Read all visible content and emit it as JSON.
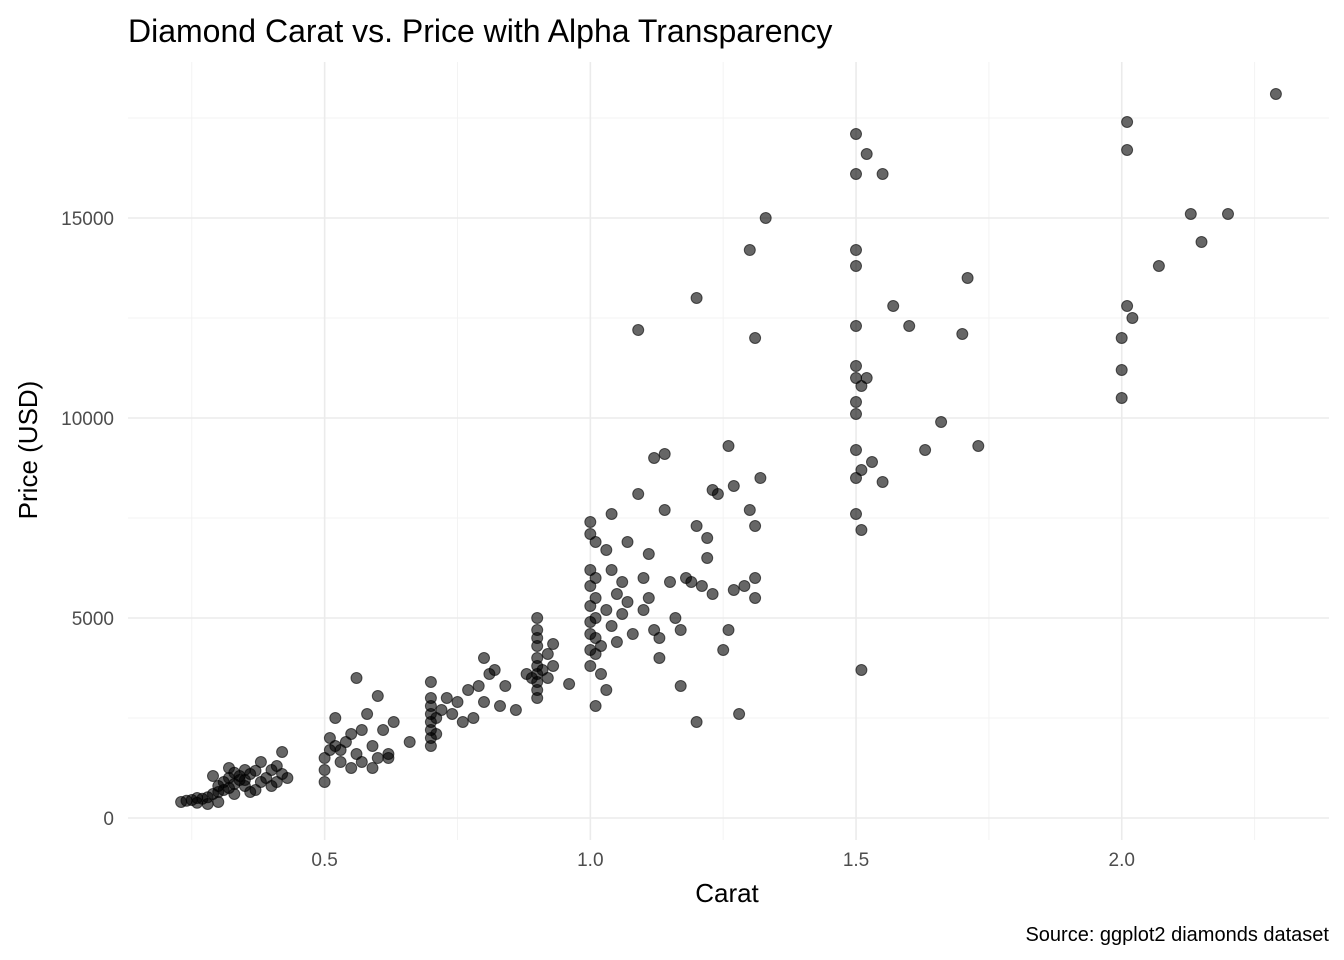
{
  "chart_data": {
    "type": "scatter",
    "title": "Diamond Carat vs. Price with Alpha Transparency",
    "xlabel": "Carat",
    "ylabel": "Price (USD)",
    "caption": "Source: ggplot2 diamonds dataset",
    "xlim": [
      0.13,
      2.39
    ],
    "ylim": [
      -550,
      18900
    ],
    "x_ticks": [
      0.5,
      1.0,
      1.5,
      2.0
    ],
    "x_tick_labels": [
      "0.5",
      "1.0",
      "1.5",
      "2.0"
    ],
    "y_ticks": [
      0,
      5000,
      10000,
      15000
    ],
    "y_tick_labels": [
      "0",
      "5000",
      "10000",
      "15000"
    ],
    "grid": true,
    "point_color": "#000000",
    "point_alpha": 0.6,
    "points": [
      [
        0.23,
        400
      ],
      [
        0.24,
        430
      ],
      [
        0.25,
        450
      ],
      [
        0.26,
        500
      ],
      [
        0.27,
        480
      ],
      [
        0.28,
        520
      ],
      [
        0.29,
        600
      ],
      [
        0.3,
        650
      ],
      [
        0.3,
        800
      ],
      [
        0.31,
        700
      ],
      [
        0.31,
        900
      ],
      [
        0.32,
        750
      ],
      [
        0.32,
        1000
      ],
      [
        0.33,
        850
      ],
      [
        0.33,
        600
      ],
      [
        0.34,
        950
      ],
      [
        0.35,
        1200
      ],
      [
        0.35,
        800
      ],
      [
        0.36,
        1100
      ],
      [
        0.37,
        700
      ],
      [
        0.38,
        900
      ],
      [
        0.38,
        1400
      ],
      [
        0.39,
        1000
      ],
      [
        0.4,
        1200
      ],
      [
        0.4,
        800
      ],
      [
        0.41,
        1300
      ],
      [
        0.42,
        1650
      ],
      [
        0.42,
        1100
      ],
      [
        0.43,
        1000
      ],
      [
        0.3,
        400
      ],
      [
        0.28,
        350
      ],
      [
        0.26,
        380
      ],
      [
        0.34,
        1050
      ],
      [
        0.36,
        650
      ],
      [
        0.29,
        1050
      ],
      [
        0.32,
        1250
      ],
      [
        0.35,
        950
      ],
      [
        0.37,
        1180
      ],
      [
        0.41,
        900
      ],
      [
        0.33,
        1130
      ],
      [
        0.5,
        900
      ],
      [
        0.5,
        1200
      ],
      [
        0.5,
        1500
      ],
      [
        0.51,
        1700
      ],
      [
        0.51,
        2000
      ],
      [
        0.52,
        1800
      ],
      [
        0.52,
        2500
      ],
      [
        0.53,
        1400
      ],
      [
        0.54,
        1900
      ],
      [
        0.55,
        2100
      ],
      [
        0.56,
        3500
      ],
      [
        0.56,
        1600
      ],
      [
        0.57,
        2200
      ],
      [
        0.58,
        2600
      ],
      [
        0.59,
        1800
      ],
      [
        0.6,
        3050
      ],
      [
        0.6,
        1500
      ],
      [
        0.61,
        2200
      ],
      [
        0.62,
        1600
      ],
      [
        0.63,
        2400
      ],
      [
        0.66,
        1900
      ],
      [
        0.53,
        1700
      ],
      [
        0.55,
        1250
      ],
      [
        0.57,
        1400
      ],
      [
        0.59,
        1250
      ],
      [
        0.62,
        1500
      ],
      [
        0.7,
        1800
      ],
      [
        0.7,
        2000
      ],
      [
        0.7,
        2200
      ],
      [
        0.7,
        2400
      ],
      [
        0.7,
        2600
      ],
      [
        0.7,
        2800
      ],
      [
        0.7,
        3000
      ],
      [
        0.7,
        3400
      ],
      [
        0.71,
        2500
      ],
      [
        0.71,
        2100
      ],
      [
        0.72,
        2700
      ],
      [
        0.73,
        3000
      ],
      [
        0.74,
        2600
      ],
      [
        0.75,
        2900
      ],
      [
        0.76,
        2400
      ],
      [
        0.77,
        3200
      ],
      [
        0.78,
        2500
      ],
      [
        0.79,
        3300
      ],
      [
        0.8,
        2900
      ],
      [
        0.8,
        4000
      ],
      [
        0.81,
        3600
      ],
      [
        0.82,
        3700
      ],
      [
        0.83,
        2800
      ],
      [
        0.84,
        3300
      ],
      [
        0.86,
        2700
      ],
      [
        0.88,
        3600
      ],
      [
        0.89,
        3500
      ],
      [
        0.9,
        3200
      ],
      [
        0.9,
        3400
      ],
      [
        0.9,
        3600
      ],
      [
        0.9,
        3800
      ],
      [
        0.9,
        4000
      ],
      [
        0.9,
        4300
      ],
      [
        0.9,
        4500
      ],
      [
        0.9,
        4700
      ],
      [
        0.9,
        5000
      ],
      [
        0.9,
        3000
      ],
      [
        0.91,
        3700
      ],
      [
        0.92,
        4100
      ],
      [
        0.92,
        3500
      ],
      [
        0.93,
        3800
      ],
      [
        0.93,
        4350
      ],
      [
        0.96,
        3350
      ],
      [
        1.0,
        3800
      ],
      [
        1.0,
        4200
      ],
      [
        1.0,
        4600
      ],
      [
        1.0,
        4900
      ],
      [
        1.0,
        5300
      ],
      [
        1.0,
        5800
      ],
      [
        1.0,
        6200
      ],
      [
        1.0,
        7100
      ],
      [
        1.0,
        7400
      ],
      [
        1.01,
        4100
      ],
      [
        1.01,
        4500
      ],
      [
        1.01,
        5000
      ],
      [
        1.01,
        5500
      ],
      [
        1.01,
        6000
      ],
      [
        1.01,
        6900
      ],
      [
        1.01,
        2800
      ],
      [
        1.02,
        4300
      ],
      [
        1.02,
        3600
      ],
      [
        1.03,
        5200
      ],
      [
        1.03,
        6700
      ],
      [
        1.03,
        3200
      ],
      [
        1.04,
        4800
      ],
      [
        1.04,
        6200
      ],
      [
        1.04,
        7600
      ],
      [
        1.05,
        5600
      ],
      [
        1.05,
        4400
      ],
      [
        1.06,
        5900
      ],
      [
        1.06,
        5100
      ],
      [
        1.07,
        6900
      ],
      [
        1.07,
        5400
      ],
      [
        1.08,
        4600
      ],
      [
        1.09,
        8100
      ],
      [
        1.09,
        12200
      ],
      [
        1.1,
        5200
      ],
      [
        1.1,
        6000
      ],
      [
        1.11,
        5500
      ],
      [
        1.11,
        6600
      ],
      [
        1.12,
        4700
      ],
      [
        1.12,
        9000
      ],
      [
        1.13,
        4000
      ],
      [
        1.13,
        4500
      ],
      [
        1.14,
        9100
      ],
      [
        1.14,
        7700
      ],
      [
        1.15,
        5900
      ],
      [
        1.16,
        5000
      ],
      [
        1.17,
        4700
      ],
      [
        1.17,
        3300
      ],
      [
        1.18,
        6000
      ],
      [
        1.19,
        5900
      ],
      [
        1.2,
        2400
      ],
      [
        1.2,
        7300
      ],
      [
        1.2,
        13000
      ],
      [
        1.21,
        5800
      ],
      [
        1.22,
        6500
      ],
      [
        1.22,
        7000
      ],
      [
        1.23,
        5600
      ],
      [
        1.23,
        8200
      ],
      [
        1.24,
        8100
      ],
      [
        1.25,
        4200
      ],
      [
        1.26,
        4700
      ],
      [
        1.26,
        9300
      ],
      [
        1.27,
        5700
      ],
      [
        1.27,
        8300
      ],
      [
        1.28,
        2600
      ],
      [
        1.29,
        5800
      ],
      [
        1.3,
        7700
      ],
      [
        1.3,
        14200
      ],
      [
        1.31,
        5500
      ],
      [
        1.31,
        6000
      ],
      [
        1.31,
        7300
      ],
      [
        1.31,
        12000
      ],
      [
        1.32,
        8500
      ],
      [
        1.33,
        15000
      ],
      [
        1.5,
        17100
      ],
      [
        1.5,
        16100
      ],
      [
        1.5,
        14200
      ],
      [
        1.5,
        13800
      ],
      [
        1.5,
        12300
      ],
      [
        1.5,
        11300
      ],
      [
        1.5,
        11000
      ],
      [
        1.5,
        10400
      ],
      [
        1.5,
        10100
      ],
      [
        1.5,
        9200
      ],
      [
        1.5,
        8500
      ],
      [
        1.5,
        7600
      ],
      [
        1.51,
        7200
      ],
      [
        1.51,
        3700
      ],
      [
        1.51,
        8700
      ],
      [
        1.51,
        10800
      ],
      [
        1.52,
        11000
      ],
      [
        1.52,
        16600
      ],
      [
        1.53,
        8900
      ],
      [
        1.55,
        8400
      ],
      [
        1.55,
        16100
      ],
      [
        1.57,
        12800
      ],
      [
        1.6,
        12300
      ],
      [
        1.63,
        9200
      ],
      [
        1.66,
        9900
      ],
      [
        1.7,
        12100
      ],
      [
        1.71,
        13500
      ],
      [
        1.73,
        9300
      ],
      [
        2.0,
        10500
      ],
      [
        2.0,
        11200
      ],
      [
        2.0,
        12000
      ],
      [
        2.01,
        12800
      ],
      [
        2.01,
        16700
      ],
      [
        2.01,
        17400
      ],
      [
        2.02,
        12500
      ],
      [
        2.07,
        13800
      ],
      [
        2.13,
        15100
      ],
      [
        2.15,
        14400
      ],
      [
        2.2,
        15100
      ],
      [
        2.29,
        18100
      ]
    ]
  }
}
